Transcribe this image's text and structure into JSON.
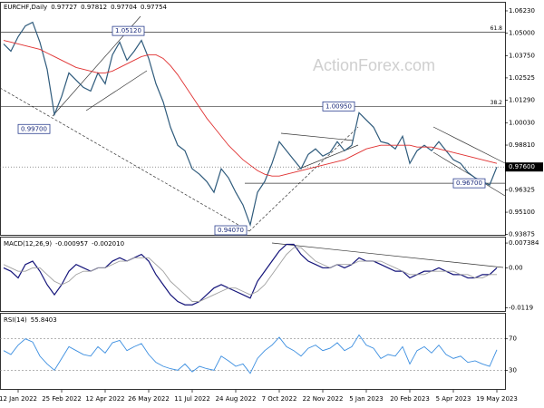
{
  "chart_data": [
    {
      "type": "line",
      "symbol": "EURCHF,Daily",
      "quote": [
        0.97727,
        0.97812,
        0.97704,
        0.97754
      ],
      "watermark": "ActionForex.com",
      "ylim": [
        0.9385,
        1.0668
      ],
      "yticks": [
        {
          "value": 1.0623,
          "label": "1.06230"
        },
        {
          "value": 1.05,
          "label": "1.05000"
        },
        {
          "value": 1.0375,
          "label": "1.03750"
        },
        {
          "value": 1.02525,
          "label": "1.02525"
        },
        {
          "value": 1.0129,
          "label": "1.01290"
        },
        {
          "value": 1.0003,
          "label": "1.00030"
        },
        {
          "value": 0.9881,
          "label": "0.98810"
        },
        {
          "value": 0.96325,
          "label": "0.96325"
        },
        {
          "value": 0.951,
          "label": "0.95100"
        },
        {
          "value": 0.93875,
          "label": "0.93875"
        }
      ],
      "last_price": {
        "value": 0.976,
        "label": "0.97600"
      },
      "levels": [
        {
          "value": 1.0505,
          "label": "61.8"
        },
        {
          "value": 1.0095,
          "label": "38.2"
        }
      ],
      "annotations": [
        {
          "value": 1.0512,
          "label": "1.05120"
        },
        {
          "value": 0.997,
          "label": "0.99700"
        },
        {
          "value": 1.0095,
          "label": "1.00950"
        },
        {
          "value": 0.967,
          "label": "0.96700"
        },
        {
          "value": 0.9407,
          "label": "0.94070"
        }
      ],
      "series": [
        {
          "name": "EURCHF",
          "color": "#2f5b7c",
          "values": [
            1.044,
            1.04,
            1.048,
            1.054,
            1.056,
            1.045,
            1.03,
            1.005,
            1.015,
            1.028,
            1.024,
            1.02,
            1.018,
            1.028,
            1.022,
            1.038,
            1.045,
            1.035,
            1.04,
            1.046,
            1.036,
            1.022,
            1.012,
            0.998,
            0.988,
            0.985,
            0.975,
            0.972,
            0.968,
            0.962,
            0.975,
            0.97,
            0.962,
            0.955,
            0.944,
            0.962,
            0.968,
            0.978,
            0.99,
            0.985,
            0.98,
            0.975,
            0.983,
            0.986,
            0.982,
            0.984,
            0.99,
            0.985,
            0.988,
            1.006,
            1.002,
            0.998,
            0.99,
            0.989,
            0.986,
            0.993,
            0.978,
            0.985,
            0.988,
            0.985,
            0.99,
            0.985,
            0.98,
            0.978,
            0.973,
            0.97,
            0.968,
            0.966,
            0.976
          ]
        },
        {
          "name": "MA",
          "color": "#e03030",
          "values": [
            1.046,
            1.045,
            1.044,
            1.043,
            1.042,
            1.041,
            1.039,
            1.037,
            1.035,
            1.033,
            1.031,
            1.03,
            1.029,
            1.028,
            1.028,
            1.029,
            1.031,
            1.033,
            1.035,
            1.037,
            1.038,
            1.038,
            1.036,
            1.032,
            1.027,
            1.021,
            1.015,
            1.009,
            1.003,
            0.998,
            0.993,
            0.988,
            0.984,
            0.98,
            0.977,
            0.974,
            0.972,
            0.971,
            0.971,
            0.972,
            0.973,
            0.974,
            0.975,
            0.976,
            0.977,
            0.978,
            0.979,
            0.98,
            0.982,
            0.984,
            0.986,
            0.987,
            0.988,
            0.988,
            0.988,
            0.988,
            0.988,
            0.987,
            0.987,
            0.987,
            0.986,
            0.985,
            0.984,
            0.983,
            0.982,
            0.981,
            0.98,
            0.979,
            0.978
          ]
        }
      ]
    },
    {
      "type": "line",
      "indicator": "MACD(12,26,9)",
      "readings": [
        -0.000957,
        {
          "value": -0.00201,
          "label": "-0.002010"
        }
      ],
      "ylim": [
        -0.0131,
        0.00902
      ],
      "yticks": [
        0.007384,
        {
          "value": 0,
          "label": "0.00"
        },
        -0.0119
      ],
      "series": [
        {
          "name": "MACD",
          "color": "#14147a",
          "values": [
            0.0,
            -0.001,
            -0.003,
            0.001,
            0.002,
            -0.001,
            -0.005,
            -0.008,
            -0.005,
            -0.001,
            0.001,
            0.0,
            -0.001,
            0.0,
            0.0,
            0.002,
            0.003,
            0.002,
            0.003,
            0.004,
            0.002,
            -0.002,
            -0.005,
            -0.008,
            -0.01,
            -0.011,
            -0.011,
            -0.01,
            -0.008,
            -0.006,
            -0.005,
            -0.006,
            -0.007,
            -0.008,
            -0.009,
            -0.004,
            -0.001,
            0.002,
            0.005,
            0.007,
            0.007,
            0.004,
            0.002,
            0.001,
            0.0,
            0.0,
            0.001,
            0.0,
            0.001,
            0.003,
            0.002,
            0.002,
            0.001,
            0.0,
            -0.001,
            -0.001,
            -0.003,
            -0.002,
            -0.001,
            -0.001,
            0.0,
            -0.001,
            -0.002,
            -0.002,
            -0.003,
            -0.003,
            -0.002,
            -0.002,
            0.0
          ]
        },
        {
          "name": "Signal",
          "color": "#a0a0a0",
          "values": [
            0.001,
            0.0,
            -0.001,
            -0.001,
            0.0,
            0.0,
            -0.002,
            -0.004,
            -0.005,
            -0.004,
            -0.002,
            -0.001,
            -0.001,
            0.0,
            0.0,
            0.001,
            0.002,
            0.002,
            0.003,
            0.003,
            0.003,
            0.001,
            -0.001,
            -0.004,
            -0.006,
            -0.008,
            -0.01,
            -0.01,
            -0.009,
            -0.008,
            -0.007,
            -0.006,
            -0.006,
            -0.007,
            -0.008,
            -0.007,
            -0.005,
            -0.002,
            0.001,
            0.004,
            0.006,
            0.006,
            0.004,
            0.002,
            0.001,
            0.0,
            0.001,
            0.001,
            0.001,
            0.002,
            0.002,
            0.002,
            0.002,
            0.001,
            0.0,
            -0.001,
            -0.002,
            -0.002,
            -0.002,
            -0.001,
            -0.001,
            -0.001,
            -0.001,
            -0.002,
            -0.002,
            -0.003,
            -0.003,
            -0.002,
            -0.002
          ]
        }
      ]
    },
    {
      "type": "line",
      "indicator": "RSI(14)",
      "readings": [
        55.8403
      ],
      "ylim": [
        5,
        102
      ],
      "yticks": [
        70,
        30
      ],
      "categories": [
        null,
        null,
        "12 Jan 2022",
        null,
        null,
        null,
        null,
        null,
        "25 Feb 2022",
        null,
        null,
        null,
        null,
        null,
        "12 Apr 2022",
        null,
        null,
        null,
        null,
        null,
        "26 May 2022",
        null,
        null,
        null,
        null,
        null,
        "11 Jul 2022",
        null,
        null,
        null,
        null,
        null,
        "24 Aug 2022",
        null,
        null,
        null,
        null,
        null,
        "7 Oct 2022",
        null,
        null,
        null,
        null,
        null,
        "22 Nov 2022",
        null,
        null,
        null,
        null,
        null,
        "5 Jan 2023",
        null,
        null,
        null,
        null,
        null,
        "20 Feb 2023",
        null,
        null,
        null,
        null,
        null,
        "5 Apr 2023",
        null,
        null,
        null,
        null,
        null,
        "19 May 2023"
      ],
      "series": [
        {
          "name": "RSI",
          "color": "#3b8ee0",
          "values": [
            55,
            50,
            62,
            70,
            66,
            48,
            38,
            30,
            45,
            60,
            55,
            50,
            48,
            60,
            52,
            65,
            68,
            55,
            60,
            64,
            50,
            40,
            35,
            32,
            30,
            38,
            28,
            35,
            32,
            30,
            48,
            42,
            35,
            38,
            26,
            45,
            55,
            62,
            72,
            60,
            55,
            48,
            58,
            62,
            55,
            58,
            65,
            55,
            60,
            75,
            62,
            58,
            45,
            50,
            48,
            60,
            38,
            55,
            60,
            52,
            62,
            50,
            45,
            48,
            40,
            42,
            38,
            35,
            56
          ]
        }
      ]
    }
  ]
}
